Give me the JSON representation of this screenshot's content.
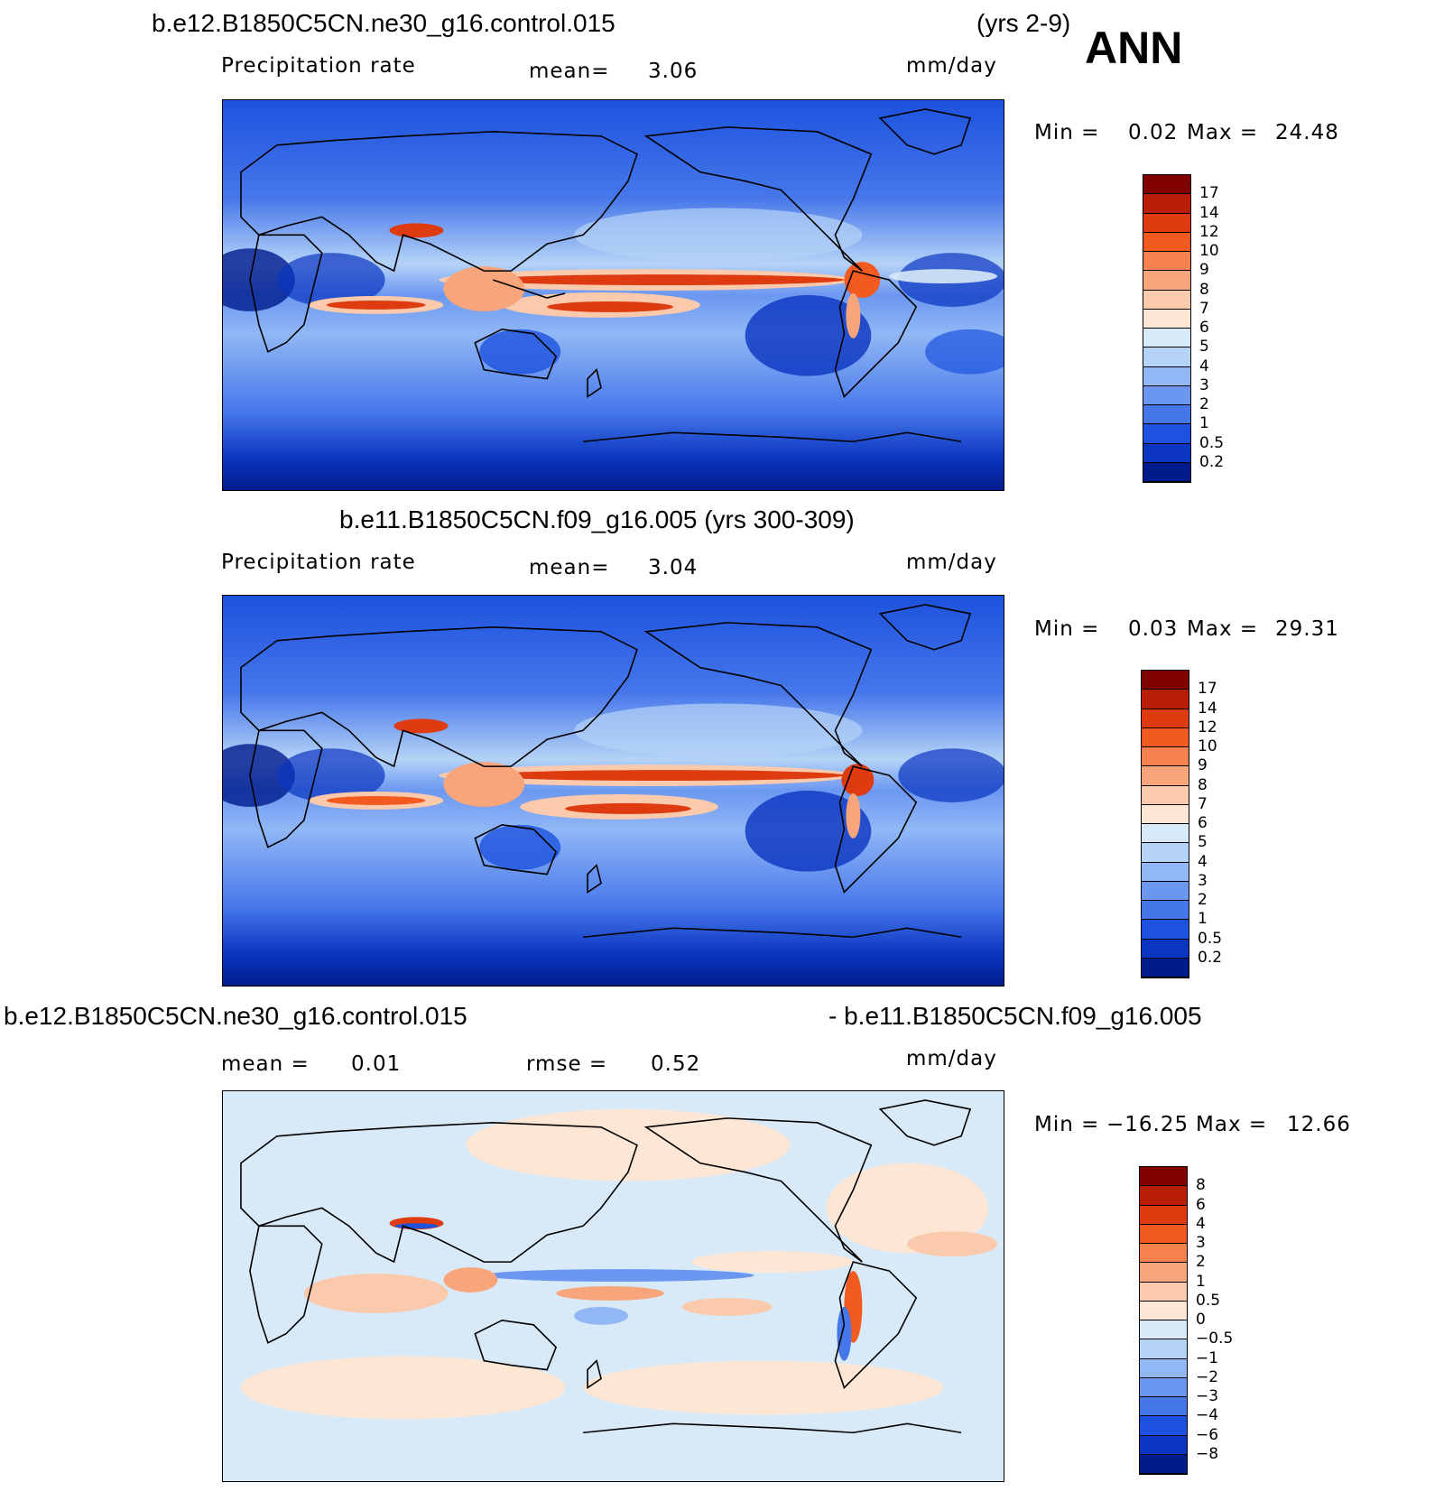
{
  "header": {
    "case1": "b.e12.B1850C5CN.ne30_g16.control.015",
    "years1": "(yrs 2-9)",
    "season": "ANN"
  },
  "panel1": {
    "field": "Precipitation rate",
    "mean_label": "mean=",
    "mean_value": "3.06",
    "units": "mm/day",
    "min_label": "Min =",
    "min_value": "0.02",
    "max_label": "Max =",
    "max_value": "24.48"
  },
  "panel2": {
    "title": "b.e11.B1850C5CN.f09_g16.005 (yrs 300-309)",
    "field": "Precipitation rate",
    "mean_label": "mean=",
    "mean_value": "3.04",
    "units": "mm/day",
    "min_label": "Min =",
    "min_value": "0.03",
    "max_label": "Max =",
    "max_value": "29.31"
  },
  "panel3": {
    "title_left": "b.e12.B1850C5CN.ne30_g16.control.015",
    "title_right": "- b.e11.B1850C5CN.f09_g16.005",
    "mean_label": "mean =",
    "mean_value": "0.01",
    "rmse_label": "rmse =",
    "rmse_value": "0.52",
    "units": "mm/day",
    "min_label": "Min =",
    "min_value": "−16.25",
    "max_label": "Max =",
    "max_value": "12.66"
  },
  "colorbar_abs": {
    "labels": [
      "17",
      "14",
      "12",
      "10",
      "9",
      "8",
      "7",
      "6",
      "5",
      "4",
      "3",
      "2",
      "1",
      "0.5",
      "0.2"
    ],
    "colors": [
      "#800000",
      "#b81e05",
      "#de3b10",
      "#f25a1f",
      "#f6834d",
      "#f8a57c",
      "#fbc9ac",
      "#fde6d4",
      "#d8e9f8",
      "#b5d3f7",
      "#91b7f5",
      "#6b97f1",
      "#4677ea",
      "#1d52de",
      "#0a35c0",
      "#001c8c"
    ]
  },
  "colorbar_diff": {
    "labels": [
      "8",
      "6",
      "4",
      "3",
      "2",
      "1",
      "0.5",
      "0",
      "−0.5",
      "−1",
      "−2",
      "−3",
      "−4",
      "−6",
      "−8"
    ],
    "colors": [
      "#800000",
      "#b81e05",
      "#de3b10",
      "#f25a1f",
      "#f6834d",
      "#f8a57c",
      "#fbc9ac",
      "#fde6d4",
      "#d8e9f8",
      "#b5d3f7",
      "#91b7f5",
      "#6b97f1",
      "#4677ea",
      "#1d52de",
      "#0a35c0",
      "#001c8c"
    ]
  }
}
